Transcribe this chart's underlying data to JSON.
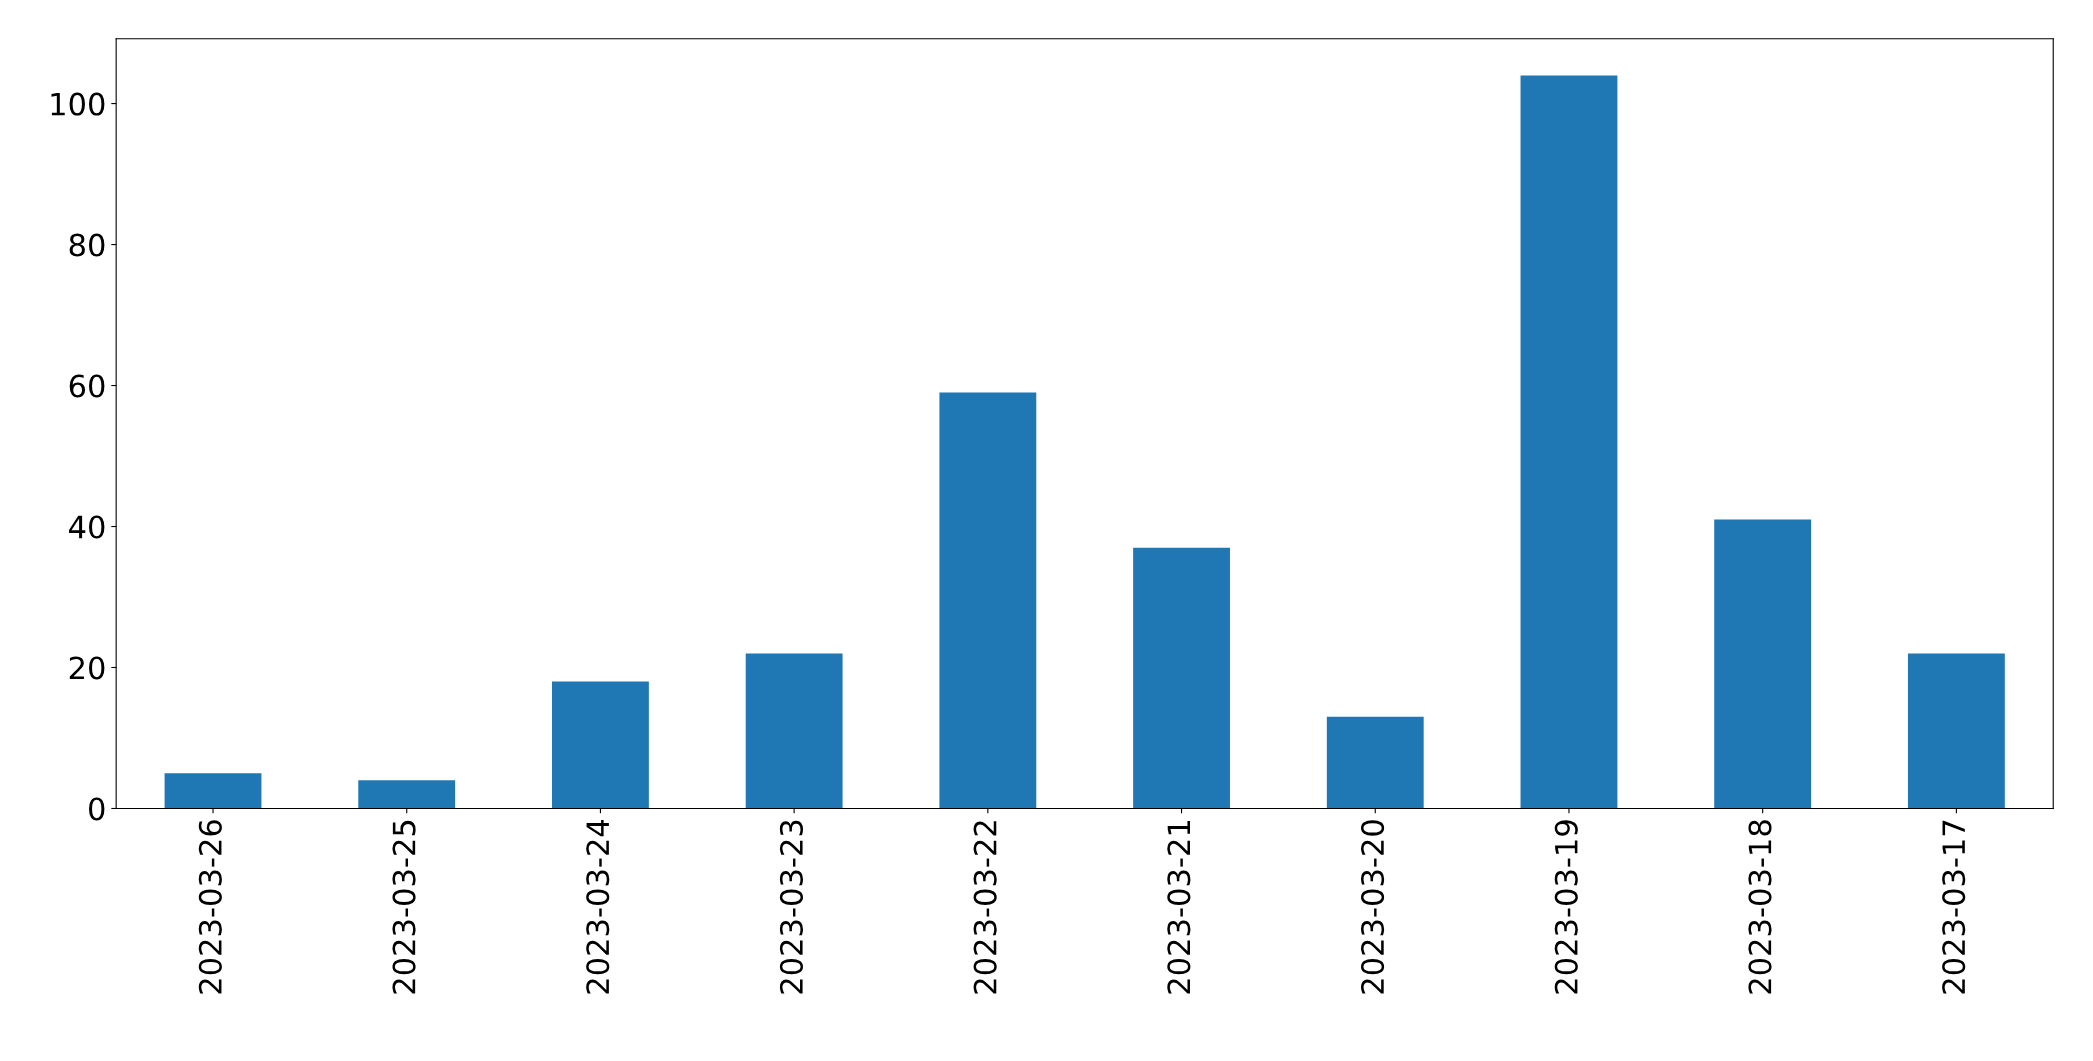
{
  "chart_data": {
    "type": "bar",
    "categories": [
      "2023-03-26",
      "2023-03-25",
      "2023-03-24",
      "2023-03-23",
      "2023-03-22",
      "2023-03-21",
      "2023-03-20",
      "2023-03-19",
      "2023-03-18",
      "2023-03-17"
    ],
    "values": [
      5,
      4,
      18,
      22,
      59,
      37,
      13,
      104,
      41,
      22
    ],
    "color": "#1f77b4",
    "ylim": [
      0,
      109.2
    ],
    "yticks": [
      0,
      20,
      40,
      60,
      80,
      100
    ],
    "grid": false,
    "legend": false
  }
}
